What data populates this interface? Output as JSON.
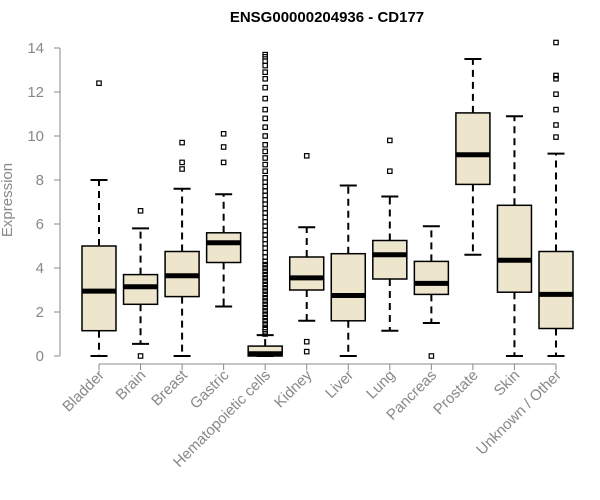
{
  "chart_data": {
    "type": "boxplot",
    "title": "ENSG00000204936 - CD177",
    "xlabel": "",
    "ylabel": "Expression",
    "ylim": [
      0,
      14
    ],
    "yticks": [
      0,
      2,
      4,
      6,
      8,
      10,
      12,
      14
    ],
    "grid": false,
    "box_color": "#ede6cc",
    "categories": [
      "Bladder",
      "Brain",
      "Breast",
      "Gastric",
      "Hematopoietic cells",
      "Kidney",
      "Liver",
      "Lung",
      "Pancreas",
      "Prostate",
      "Skin",
      "Unknown / Other"
    ],
    "boxes": [
      {
        "category": "Bladder",
        "whisker_low": 0.0,
        "q1": 1.15,
        "median": 2.95,
        "q3": 5.0,
        "whisker_high": 8.0,
        "outliers": [
          12.4
        ]
      },
      {
        "category": "Brain",
        "whisker_low": 0.55,
        "q1": 2.35,
        "median": 3.15,
        "q3": 3.7,
        "whisker_high": 5.8,
        "outliers": [
          6.6,
          0.0
        ]
      },
      {
        "category": "Breast",
        "whisker_low": 0.0,
        "q1": 2.7,
        "median": 3.65,
        "q3": 4.75,
        "whisker_high": 7.6,
        "outliers": [
          8.5,
          8.8,
          9.7
        ]
      },
      {
        "category": "Gastric",
        "whisker_low": 2.25,
        "q1": 4.25,
        "median": 5.15,
        "q3": 5.6,
        "whisker_high": 7.35,
        "outliers": [
          8.8,
          9.5,
          10.1
        ]
      },
      {
        "category": "Hematopoietic cells",
        "whisker_low": 0.0,
        "q1": 0.0,
        "median": 0.1,
        "q3": 0.45,
        "whisker_high": 0.95,
        "outliers": [
          1.0,
          1.1,
          1.2,
          1.3,
          1.45,
          1.6,
          1.75,
          1.9,
          2.05,
          2.2,
          2.35,
          2.5,
          2.65,
          2.8,
          2.95,
          3.1,
          3.25,
          3.4,
          3.55,
          3.7,
          3.85,
          4.0,
          4.15,
          4.3,
          4.5,
          4.7,
          4.9,
          5.1,
          5.3,
          5.5,
          5.7,
          5.9,
          6.1,
          6.3,
          6.5,
          6.7,
          6.9,
          7.1,
          7.3,
          7.5,
          7.7,
          7.9,
          8.1,
          8.4,
          8.7,
          9.0,
          9.3,
          9.6,
          10.0,
          10.4,
          10.8,
          11.2,
          11.7,
          12.2,
          12.6,
          12.9,
          13.2,
          13.4,
          13.6,
          13.7
        ]
      },
      {
        "category": "Kidney",
        "whisker_low": 1.6,
        "q1": 3.0,
        "median": 3.55,
        "q3": 4.5,
        "whisker_high": 5.85,
        "outliers": [
          9.1,
          0.65,
          0.2
        ]
      },
      {
        "category": "Liver",
        "whisker_low": 0.0,
        "q1": 1.6,
        "median": 2.75,
        "q3": 4.65,
        "whisker_high": 7.75,
        "outliers": []
      },
      {
        "category": "Lung",
        "whisker_low": 1.15,
        "q1": 3.5,
        "median": 4.6,
        "q3": 5.25,
        "whisker_high": 7.25,
        "outliers": [
          8.4,
          9.8
        ]
      },
      {
        "category": "Pancreas",
        "whisker_low": 1.5,
        "q1": 2.8,
        "median": 3.3,
        "q3": 4.3,
        "whisker_high": 5.9,
        "outliers": [
          0.0
        ]
      },
      {
        "category": "Prostate",
        "whisker_low": 4.6,
        "q1": 7.8,
        "median": 9.15,
        "q3": 11.05,
        "whisker_high": 13.5,
        "outliers": []
      },
      {
        "category": "Skin",
        "whisker_low": 0.0,
        "q1": 2.9,
        "median": 4.35,
        "q3": 6.85,
        "whisker_high": 10.9,
        "outliers": []
      },
      {
        "category": "Unknown / Other",
        "whisker_low": 0.0,
        "q1": 1.25,
        "median": 2.8,
        "q3": 4.75,
        "whisker_high": 9.2,
        "outliers": [
          9.95,
          10.5,
          11.2,
          11.9,
          12.6,
          12.75,
          14.25
        ]
      }
    ]
  }
}
